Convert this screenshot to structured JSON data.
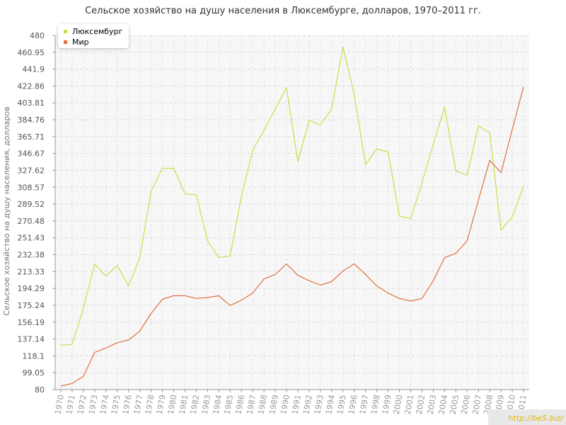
{
  "chart_data": {
    "type": "line",
    "title": "Сельское хозяйство на душу населения в Люксембурге, долларов, 1970–2011 гг.",
    "ylabel": "Сельское хозяйство на душу населения, долларов",
    "xlabel": "",
    "x": [
      1970,
      1971,
      1972,
      1973,
      1974,
      1975,
      1976,
      1977,
      1978,
      1979,
      1980,
      1981,
      1982,
      1983,
      1984,
      1985,
      1986,
      1987,
      1988,
      1989,
      1990,
      1991,
      1992,
      1993,
      1994,
      1995,
      1996,
      1997,
      1998,
      1999,
      2000,
      2001,
      2002,
      2003,
      2004,
      2005,
      2006,
      2007,
      2008,
      2009,
      2010,
      2011
    ],
    "ylim": [
      80,
      480
    ],
    "y_ticks": [
      "80",
      "99.05",
      "118.1",
      "137.14",
      "156.19",
      "175.24",
      "194.29",
      "213.33",
      "232.38",
      "251.43",
      "270.48",
      "289.52",
      "308.57",
      "327.62",
      "346.67",
      "365.71",
      "384.76",
      "403.81",
      "422.86",
      "441.9",
      "460.95",
      "480"
    ],
    "grid": true,
    "legend_position": "top-left",
    "series": [
      {
        "name": "Люксембург",
        "color": "#c4e04a",
        "values": [
          130,
          131,
          172,
          222,
          208,
          220,
          197,
          229,
          304,
          330,
          330,
          301,
          300,
          248,
          229,
          231,
          298,
          350,
          373,
          397,
          421,
          337,
          384,
          379,
          397,
          467,
          413,
          334,
          352,
          348,
          276,
          273,
          314,
          357,
          399,
          327,
          322,
          378,
          370,
          260,
          275,
          310
        ]
      },
      {
        "name": "Мир",
        "color": "#e07040",
        "values": [
          84,
          87,
          95,
          122,
          127,
          133,
          136,
          146,
          166,
          182,
          186,
          186,
          183,
          184,
          186,
          175,
          181,
          189,
          205,
          210,
          222,
          209,
          203,
          198,
          202,
          214,
          222,
          210,
          197,
          189,
          183,
          180,
          183,
          203,
          229,
          234,
          248,
          294,
          339,
          325,
          374,
          422
        ]
      }
    ]
  },
  "watermark": "http://be5.biz/"
}
